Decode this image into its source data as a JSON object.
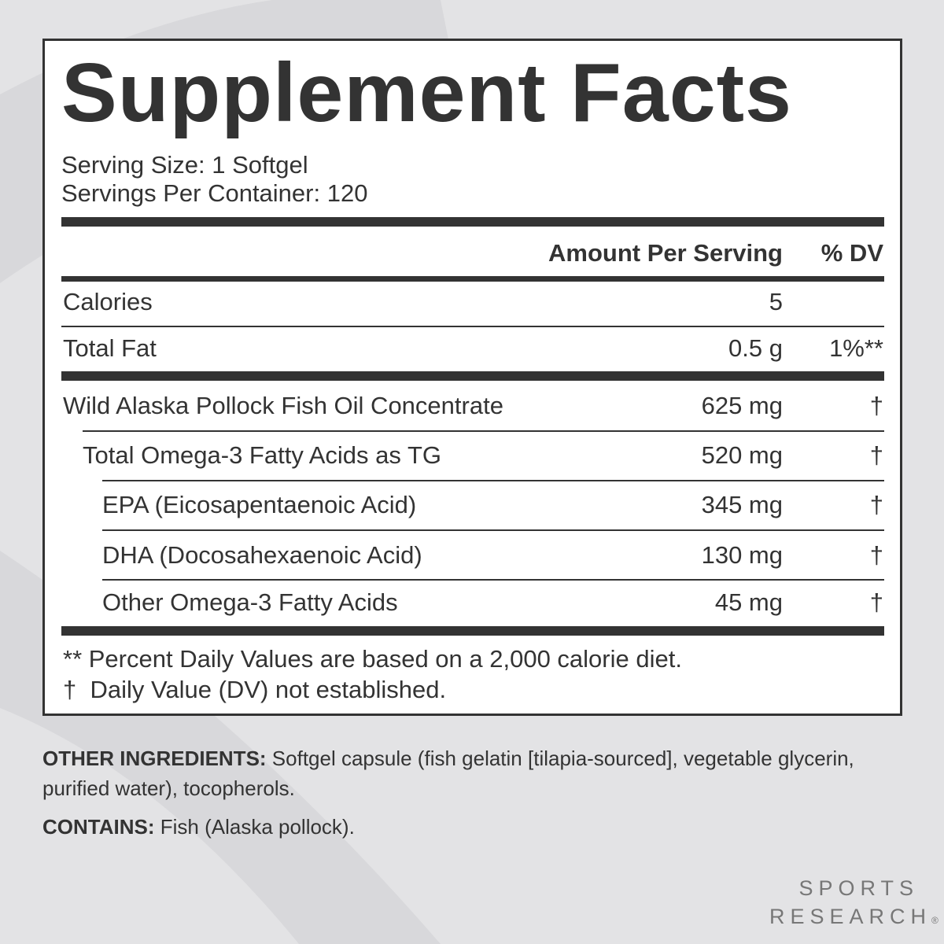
{
  "header": {
    "title": "Supplement Facts",
    "serving_size": "Serving Size: 1 Softgel",
    "servings_per_container": "Servings Per Container: 120"
  },
  "table": {
    "columns": [
      "Amount Per Serving",
      "% DV"
    ],
    "rows": [
      [
        "Calories",
        "5",
        ""
      ],
      [
        "Total Fat",
        "0.5 g",
        "1%**"
      ],
      [
        "Wild Alaska Pollock Fish Oil Concentrate",
        "625 mg",
        "†"
      ],
      [
        "Total Omega-3 Fatty Acids as TG",
        "520 mg",
        "†"
      ],
      [
        "EPA (Eicosapentaenoic Acid)",
        "345 mg",
        "†"
      ],
      [
        "DHA (Docosahexaenoic Acid)",
        "130 mg",
        "†"
      ],
      [
        "Other Omega-3 Fatty Acids",
        "45 mg",
        "†"
      ]
    ]
  },
  "footnotes": [
    "** Percent Daily Values are based on a 2,000 calorie diet.",
    "†  Daily Value (DV) not established."
  ],
  "other_ingredients": {
    "label": "OTHER INGREDIENTS:",
    "text": " Softgel capsule (fish gelatin [tilapia-sourced], vegetable glycerin, purified water), tocopherols."
  },
  "contains": {
    "label": "CONTAINS:",
    "text": " Fish (Alaska pollock)."
  },
  "brand": {
    "line1": "SPORTS",
    "line2": "RESEARCH",
    "mark": "®"
  }
}
